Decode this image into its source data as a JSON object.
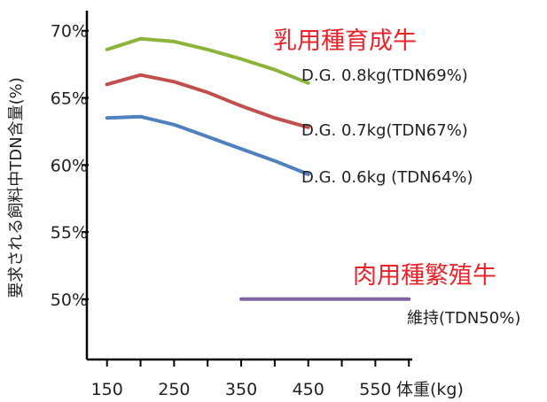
{
  "chart_data": {
    "type": "line",
    "ylabel": "要求される飼料中TDN含量(%)",
    "xlabel": "体重(kg)",
    "xlim": [
      120,
      605
    ],
    "ylim": [
      45.5,
      71.5
    ],
    "x_ticks": [
      150,
      250,
      350,
      450,
      550
    ],
    "x_minor_ticks": [
      150,
      200,
      250,
      300,
      350,
      400,
      450,
      500,
      550,
      600
    ],
    "y_ticks": [
      50,
      55,
      60,
      65,
      70
    ],
    "y_tick_labels": [
      "50%",
      "55%",
      "60%",
      "65%",
      "70%"
    ],
    "groups": [
      {
        "label": "乳用種育成牛",
        "color": "#e8232a"
      },
      {
        "label": "肉用種繁殖牛",
        "color": "#e8232a"
      }
    ],
    "series": [
      {
        "name": "D.G. 0.8kg(TDN69%)",
        "color": "#8cb43c",
        "x": [
          150,
          200,
          250,
          300,
          350,
          400,
          450
        ],
        "y": [
          68.6,
          69.4,
          69.2,
          68.6,
          67.9,
          67.1,
          66.1
        ]
      },
      {
        "name": "D.G. 0.7kg(TDN67%)",
        "color": "#c0504d",
        "x": [
          150,
          200,
          250,
          300,
          350,
          400,
          450
        ],
        "y": [
          66.0,
          66.7,
          66.2,
          65.4,
          64.4,
          63.5,
          62.8
        ]
      },
      {
        "name": "D.G. 0.6kg (TDN64%)",
        "color": "#4f81bd",
        "x": [
          150,
          200,
          250,
          300,
          350,
          400,
          450
        ],
        "y": [
          63.5,
          63.6,
          63.0,
          62.1,
          61.2,
          60.3,
          59.3
        ]
      },
      {
        "name": "維持(TDN50%)",
        "color": "#8064a2",
        "x": [
          350,
          600
        ],
        "y": [
          50.0,
          50.0
        ]
      }
    ]
  }
}
